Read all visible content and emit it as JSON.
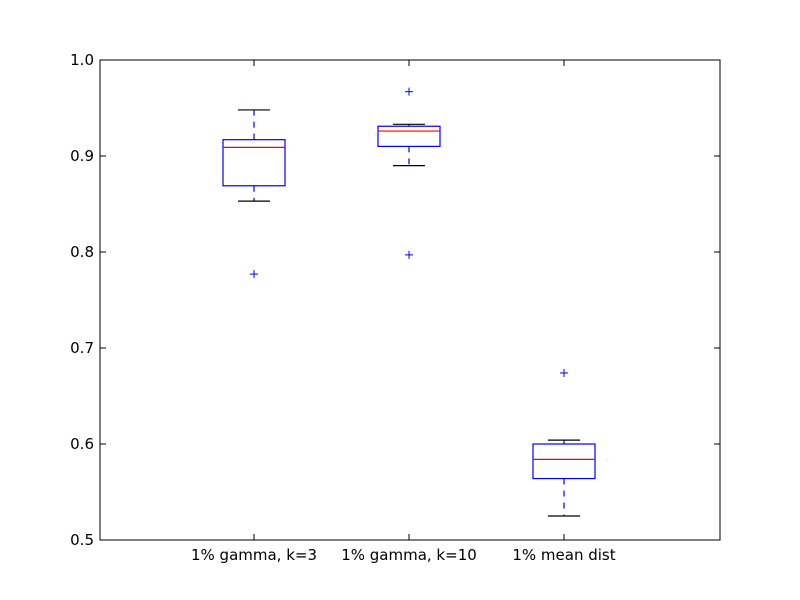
{
  "chart_data": {
    "type": "box",
    "title": "",
    "xlabel": "",
    "ylabel": "",
    "ylim": [
      0.5,
      1.0
    ],
    "yticks": [
      "0.5",
      "0.6",
      "0.7",
      "0.8",
      "0.9",
      "1.0"
    ],
    "grid": false,
    "categories": [
      "1% gamma, k=3",
      "1% gamma, k=10",
      "1% mean dist"
    ],
    "boxes": [
      {
        "whisker_low": 0.853,
        "q1": 0.869,
        "median": 0.909,
        "q3": 0.917,
        "whisker_high": 0.948,
        "outliers": [
          0.777
        ]
      },
      {
        "whisker_low": 0.89,
        "q1": 0.91,
        "median": 0.926,
        "q3": 0.931,
        "whisker_high": 0.933,
        "outliers": [
          0.797,
          0.967
        ]
      },
      {
        "whisker_low": 0.525,
        "q1": 0.564,
        "median": 0.584,
        "q3": 0.6,
        "whisker_high": 0.604,
        "outliers": [
          0.674
        ]
      }
    ],
    "colors": {
      "box": "#0000ff",
      "median": "#ff0000",
      "cap": "#000000",
      "axes": "#000000"
    }
  }
}
